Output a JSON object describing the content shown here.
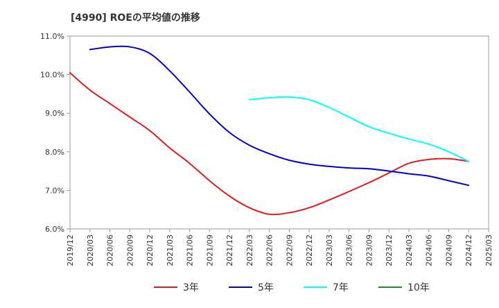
{
  "chart_data": {
    "type": "line",
    "title": "[4990]  ROEの平均値の推移",
    "xlabel": "",
    "ylabel": "",
    "ylim": [
      6.0,
      11.0
    ],
    "yticks": [
      "6.0%",
      "7.0%",
      "8.0%",
      "9.0%",
      "10.0%",
      "11.0%"
    ],
    "ytick_values": [
      6.0,
      7.0,
      8.0,
      9.0,
      10.0,
      11.0
    ],
    "categories": [
      "2019/12",
      "2020/03",
      "2020/06",
      "2020/09",
      "2020/12",
      "2021/03",
      "2021/06",
      "2021/09",
      "2021/12",
      "2022/03",
      "2022/06",
      "2022/09",
      "2022/12",
      "2023/03",
      "2023/06",
      "2023/09",
      "2023/12",
      "2024/03",
      "2024/06",
      "2024/09",
      "2024/12",
      "2025/03"
    ],
    "grid": false,
    "legend_position": "bottom",
    "series": [
      {
        "name": "3年",
        "color": "#e31a1c",
        "values": [
          10.05,
          9.6,
          9.25,
          8.9,
          8.55,
          8.1,
          7.7,
          7.25,
          6.85,
          6.55,
          6.38,
          6.42,
          6.55,
          6.75,
          6.97,
          7.2,
          7.45,
          7.7,
          7.8,
          7.82,
          7.75,
          null
        ]
      },
      {
        "name": "5年",
        "color": "#0000cc",
        "values": [
          null,
          10.65,
          10.72,
          10.72,
          10.55,
          10.1,
          9.55,
          8.98,
          8.5,
          8.17,
          7.95,
          7.78,
          7.68,
          7.62,
          7.58,
          7.56,
          7.5,
          7.43,
          7.37,
          7.25,
          7.13,
          null
        ]
      },
      {
        "name": "7年",
        "color": "#00ffff",
        "values": [
          null,
          null,
          null,
          null,
          null,
          null,
          null,
          null,
          null,
          9.35,
          9.4,
          9.42,
          9.35,
          9.15,
          8.9,
          8.65,
          8.48,
          8.33,
          8.2,
          8.0,
          7.75,
          null
        ]
      },
      {
        "name": "10年",
        "color": "#228b22",
        "values": [
          null,
          null,
          null,
          null,
          null,
          null,
          null,
          null,
          null,
          null,
          null,
          null,
          null,
          null,
          null,
          null,
          null,
          null,
          null,
          null,
          null,
          null
        ]
      }
    ]
  }
}
